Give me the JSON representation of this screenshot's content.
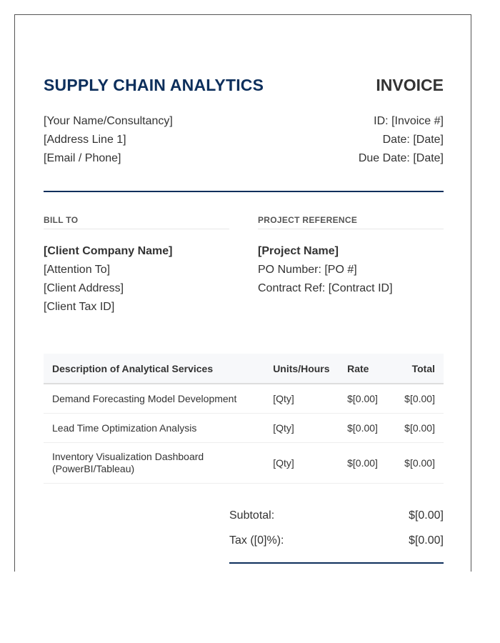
{
  "header": {
    "brand": "SUPPLY CHAIN ANALYTICS",
    "doc_type": "INVOICE"
  },
  "from": {
    "name": "[Your Name/Consultancy]",
    "address": "[Address Line 1]",
    "contact": "[Email / Phone]"
  },
  "meta": {
    "id": "ID: [Invoice #]",
    "date": "Date: [Date]",
    "due_date": "Due Date: [Date]"
  },
  "bill_to": {
    "title": "BILL TO",
    "company": "[Client Company Name]",
    "attention": "[Attention To]",
    "address": "[Client Address]",
    "tax_id": "[Client Tax ID]"
  },
  "project": {
    "title": "PROJECT REFERENCE",
    "name": "[Project Name]",
    "po": "PO Number: [PO #]",
    "contract": "Contract Ref: [Contract ID]"
  },
  "items": {
    "headers": [
      "Description of Analytical Services",
      "Units/Hours",
      "Rate",
      "Total"
    ],
    "rows": [
      {
        "description": "Demand Forecasting Model Development",
        "units": "[Qty]",
        "rate": "$[0.00]",
        "total": "$[0.00]"
      },
      {
        "description": "Lead Time Optimization Analysis",
        "units": "[Qty]",
        "rate": "$[0.00]",
        "total": "$[0.00]"
      },
      {
        "description": "Inventory Visualization Dashboard",
        "description_2": "(PowerBI/Tableau)",
        "units": "[Qty]",
        "rate": "$[0.00]",
        "total": "$[0.00]"
      }
    ]
  },
  "totals": {
    "subtotal_label": "Subtotal:",
    "subtotal_value": "$[0.00]",
    "tax_label": "Tax ([0]%):",
    "tax_value": "$[0.00]"
  },
  "colors": {
    "accent": "#0d2f5c",
    "text": "#333333",
    "table_header_bg": "#f7f8fa"
  }
}
